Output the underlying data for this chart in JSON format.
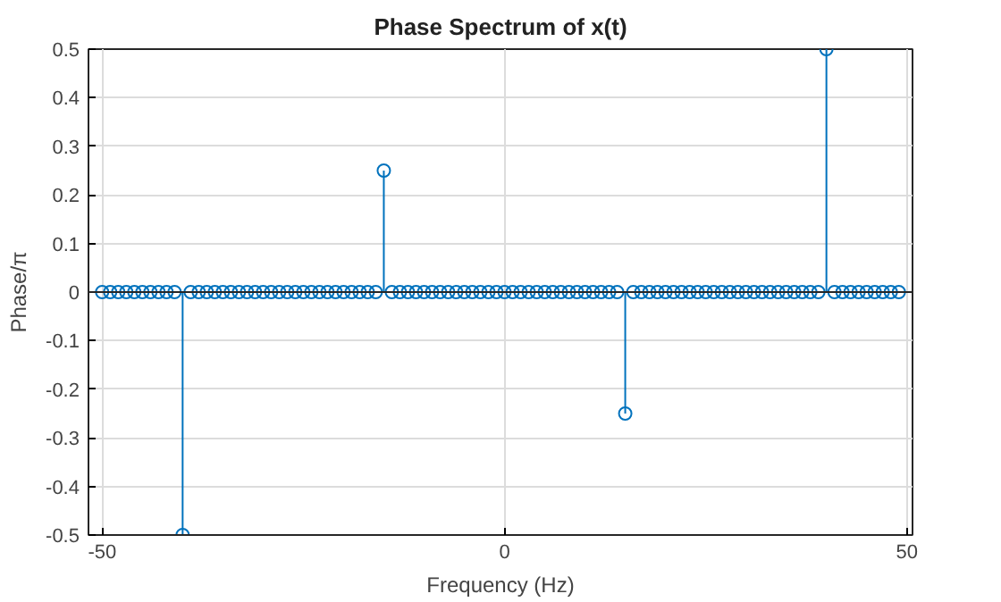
{
  "chart_data": {
    "type": "lollipop",
    "title": "Phase Spectrum of x(t)",
    "xlabel": "Frequency (Hz)",
    "ylabel": "Phase/π",
    "x": [
      -50,
      -49,
      -48,
      -47,
      -46,
      -45,
      -44,
      -43,
      -42,
      -41,
      -40,
      -39,
      -38,
      -37,
      -36,
      -35,
      -34,
      -33,
      -32,
      -31,
      -30,
      -29,
      -28,
      -27,
      -26,
      -25,
      -24,
      -23,
      -22,
      -21,
      -20,
      -19,
      -18,
      -17,
      -16,
      -15,
      -14,
      -13,
      -12,
      -11,
      -10,
      -9,
      -8,
      -7,
      -6,
      -5,
      -4,
      -3,
      -2,
      -1,
      0,
      1,
      2,
      3,
      4,
      5,
      6,
      7,
      8,
      9,
      10,
      11,
      12,
      13,
      14,
      15,
      16,
      17,
      18,
      19,
      20,
      21,
      22,
      23,
      24,
      25,
      26,
      27,
      28,
      29,
      30,
      31,
      32,
      33,
      34,
      35,
      36,
      37,
      38,
      39,
      40,
      41,
      42,
      43,
      44,
      45,
      46,
      47,
      48,
      49
    ],
    "values": [
      0,
      0,
      0,
      0,
      0,
      0,
      0,
      0,
      0,
      0,
      -0.5,
      0,
      0,
      0,
      0,
      0,
      0,
      0,
      0,
      0,
      0,
      0,
      0,
      0,
      0,
      0,
      0,
      0,
      0,
      0,
      0,
      0,
      0,
      0,
      0,
      0.25,
      0,
      0,
      0,
      0,
      0,
      0,
      0,
      0,
      0,
      0,
      0,
      0,
      0,
      0,
      0,
      0,
      0,
      0,
      0,
      0,
      0,
      0,
      0,
      0,
      0,
      0,
      0,
      0,
      0,
      -0.25,
      0,
      0,
      0,
      0,
      0,
      0,
      0,
      0,
      0,
      0,
      0,
      0,
      0,
      0,
      0,
      0,
      0,
      0,
      0,
      0,
      0,
      0,
      0,
      0,
      0.5,
      0,
      0,
      0,
      0,
      0,
      0,
      0,
      0,
      0
    ],
    "color": "#0072bd",
    "marker": "circle",
    "xlim": [
      -51.7,
      50.7
    ],
    "ylim": [
      -0.5,
      0.5
    ],
    "xticks": [
      -50,
      0,
      50
    ],
    "yticks": [
      -0.5,
      -0.4,
      -0.3,
      -0.2,
      -0.1,
      0,
      0.1,
      0.2,
      0.3,
      0.4,
      0.5
    ],
    "grid": true
  }
}
